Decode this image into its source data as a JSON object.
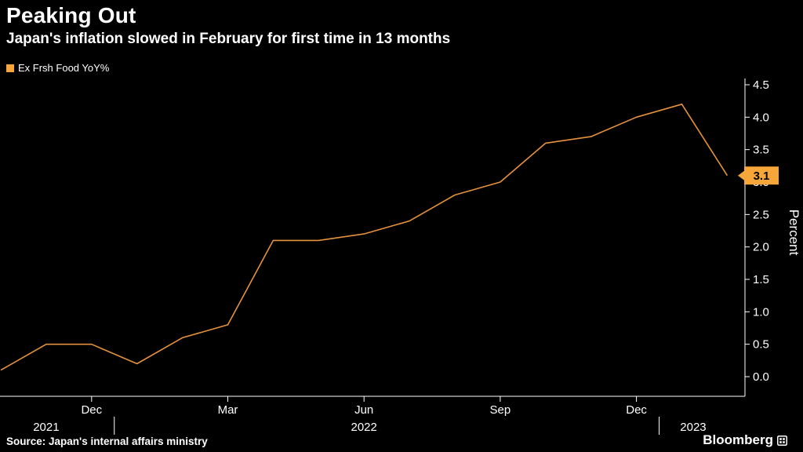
{
  "header": {
    "title": "Peaking Out",
    "subtitle": "Japan's inflation slowed in February for first time in 13 months"
  },
  "legend": {
    "label": "Ex Frsh Food YoY%",
    "swatch_color": "#f7a73a"
  },
  "footer": {
    "source": "Source: Japan's internal affairs ministry",
    "brand": "Bloomberg"
  },
  "chart_data": {
    "type": "line",
    "title": "Peaking Out",
    "subtitle": "Japan's inflation slowed in February for first time in 13 months",
    "series_name": "Ex Frsh Food YoY%",
    "x": [
      "Oct 2021",
      "Nov 2021",
      "Dec 2021",
      "Jan 2022",
      "Feb 2022",
      "Mar 2022",
      "Apr 2022",
      "May 2022",
      "Jun 2022",
      "Jul 2022",
      "Aug 2022",
      "Sep 2022",
      "Oct 2022",
      "Nov 2022",
      "Dec 2022",
      "Jan 2023",
      "Feb 2023"
    ],
    "values": [
      0.1,
      0.5,
      0.5,
      0.2,
      0.6,
      0.8,
      2.1,
      2.1,
      2.2,
      2.4,
      2.8,
      3.0,
      3.6,
      3.7,
      4.0,
      4.2,
      3.1
    ],
    "last_value_label": "3.1",
    "last_value": 3.1,
    "ylabel": "Percent",
    "ylim": [
      0,
      4.5
    ],
    "yticks": [
      0.0,
      0.5,
      1.0,
      1.5,
      2.0,
      2.5,
      3.0,
      3.5,
      4.0,
      4.5
    ],
    "ytick_labels": [
      "0.0",
      "0.5",
      "1.0",
      "1.5",
      "2.0",
      "2.5",
      "3.0",
      "3.5",
      "4.0",
      "4.5"
    ],
    "xticks": [
      {
        "label": "Dec",
        "month_index": 2
      },
      {
        "label": "Mar",
        "month_index": 5
      },
      {
        "label": "Jun",
        "month_index": 8
      },
      {
        "label": "Sep",
        "month_index": 11
      },
      {
        "label": "Dec",
        "month_index": 14
      }
    ],
    "year_labels": [
      {
        "label": "2021",
        "month_index": 1.0
      },
      {
        "label": "2022",
        "month_index": 8.0
      },
      {
        "label": "2023",
        "month_index": 15.25
      }
    ],
    "year_divider_month_indices": [
      2.5,
      14.5
    ],
    "legend_position": "top-left",
    "grid": false,
    "axis_side": "right",
    "line_color": "#e5913e",
    "badge_color": "#f7a73a",
    "badge_text_color": "#000000",
    "axis_color": "#ffffff",
    "text_color": "#ffffff"
  }
}
